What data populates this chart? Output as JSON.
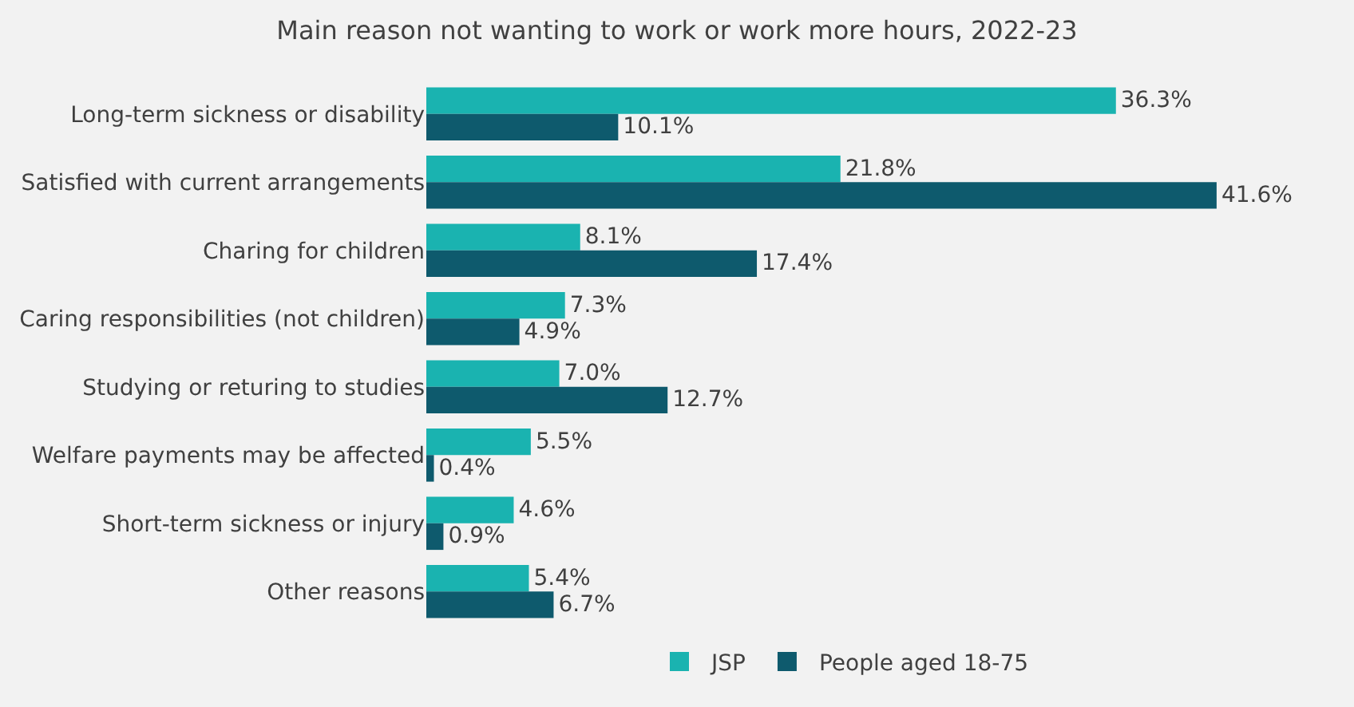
{
  "chart_data": {
    "type": "bar",
    "orientation": "horizontal",
    "title": "Main reason not wanting to work or work more hours, 2022-23",
    "categories": [
      "Long-term sickness or disability",
      "Satisfied with current arrangements",
      "Charing for children",
      "Caring responsibilities (not children)",
      "Studying or returing to studies",
      "Welfare payments may be affected",
      "Short-term sickness or injury",
      "Other reasons"
    ],
    "series": [
      {
        "name": "JSP",
        "color": "#1ab3b0",
        "values": [
          36.3,
          21.8,
          8.1,
          7.3,
          7.0,
          5.5,
          4.6,
          5.4
        ],
        "value_labels": [
          "36.3%",
          "21.8%",
          "8.1%",
          "7.3%",
          "7.0%",
          "5.5%",
          "4.6%",
          "5.4%"
        ]
      },
      {
        "name": "People aged 18-75",
        "color": "#0e5a6d",
        "values": [
          10.1,
          41.6,
          17.4,
          4.9,
          12.7,
          0.4,
          0.9,
          6.7
        ],
        "value_labels": [
          "10.1%",
          "41.6%",
          "17.4%",
          "4.9%",
          "12.7%",
          "0.4%",
          "0.9%",
          "6.7%"
        ]
      }
    ],
    "legend": "bottom",
    "grid": false
  }
}
